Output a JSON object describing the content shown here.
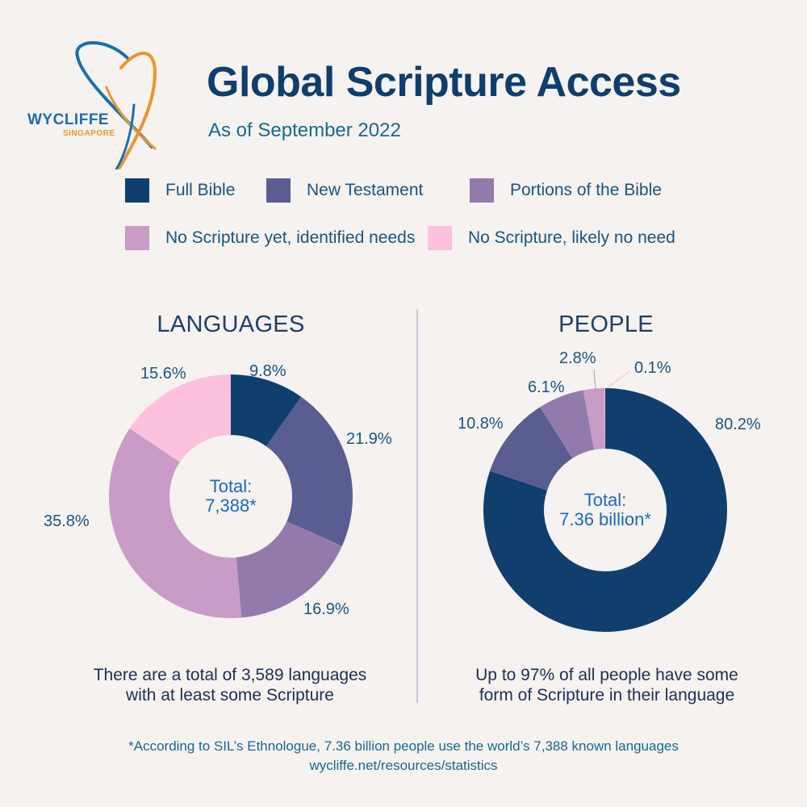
{
  "logo": {
    "name": "WYCLIFFE",
    "subname": "SINGAPORE",
    "colors": {
      "blue": "#1a6fae",
      "orange": "#e8962e"
    }
  },
  "header": {
    "title": "Global Scripture Access",
    "subtitle": "As of September 2022"
  },
  "legend": [
    {
      "label": "Full Bible",
      "color": "#103f6e"
    },
    {
      "label": "New Testament",
      "color": "#5a5d92"
    },
    {
      "label": "Portions of the Bible",
      "color": "#937aad"
    },
    {
      "label": "No Scripture yet, identified needs",
      "color": "#c99bc7"
    },
    {
      "label": "No Scripture, likely no need",
      "color": "#fdc0df"
    }
  ],
  "languages": {
    "title": "LANGUAGES",
    "center_line1": "Total:",
    "center_line2": "7,388*",
    "caption_line1": "There are a total of 3,589 languages",
    "caption_line2": "with at least some Scripture",
    "labels": [
      "9.8%",
      "21.9%",
      "16.9%",
      "35.8%",
      "15.6%"
    ]
  },
  "people": {
    "title": "PEOPLE",
    "center_line1": "Total:",
    "center_line2": "7.36 billion*",
    "caption_line1": "Up to 97% of all people have some",
    "caption_line2": "form of Scripture in their language",
    "labels": [
      "80.2%",
      "10.8%",
      "6.1%",
      "2.8%",
      "0.1%"
    ]
  },
  "footer": {
    "note": "*According to SIL’s Ethnologue, 7.36 billion people use the world’s 7,388 known languages",
    "link": "wycliffe.net/resources/statistics"
  },
  "chart_data": [
    {
      "type": "pie",
      "variant": "donut",
      "title": "LANGUAGES",
      "center_text": "Total: 7,388*",
      "categories": [
        "Full Bible",
        "New Testament",
        "Portions of the Bible",
        "No Scripture yet, identified needs",
        "No Scripture, likely no need"
      ],
      "values": [
        9.8,
        21.9,
        16.9,
        35.8,
        15.6
      ],
      "unit": "%",
      "colors": [
        "#103f6e",
        "#5a5d92",
        "#937aad",
        "#c99bc7",
        "#fdc0df"
      ],
      "start_angle": "12 o'clock, clockwise",
      "legend_position": "top (shared)",
      "caption": "There are a total of 3,589 languages with at least some Scripture"
    },
    {
      "type": "pie",
      "variant": "donut",
      "title": "PEOPLE",
      "center_text": "Total: 7.36 billion*",
      "categories": [
        "Full Bible",
        "New Testament",
        "Portions of the Bible",
        "No Scripture yet, identified needs",
        "No Scripture, likely no need"
      ],
      "values": [
        80.2,
        10.8,
        6.1,
        2.8,
        0.1
      ],
      "unit": "%",
      "colors": [
        "#103f6e",
        "#5a5d92",
        "#937aad",
        "#c99bc7",
        "#fdc0df"
      ],
      "start_angle": "12 o'clock, clockwise",
      "legend_position": "top (shared)",
      "caption": "Up to 97% of all people have some form of Scripture in their language"
    }
  ]
}
